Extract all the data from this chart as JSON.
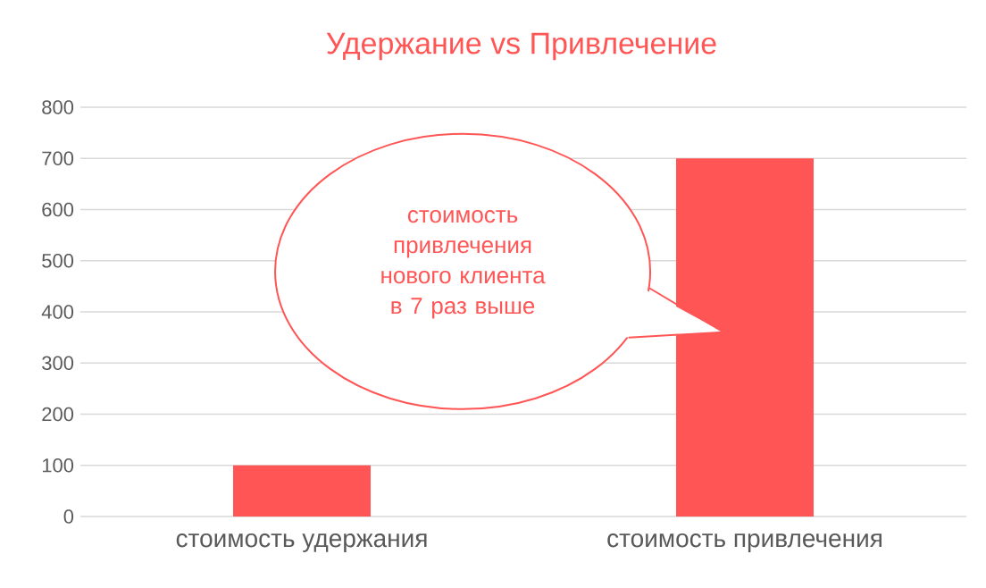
{
  "chart_data": {
    "type": "bar",
    "title": "Удержание vs Привлечение",
    "categories": [
      "стоимость удержания",
      "стоимость привлечения"
    ],
    "values": [
      100,
      700
    ],
    "color": "#ff5555",
    "ylim": [
      0,
      800
    ],
    "yticks": [
      0,
      100,
      200,
      300,
      400,
      500,
      600,
      700,
      800
    ],
    "grid": "y",
    "annotations": [
      "стоимость привлечения нового клиента в 7 раз выше"
    ]
  }
}
